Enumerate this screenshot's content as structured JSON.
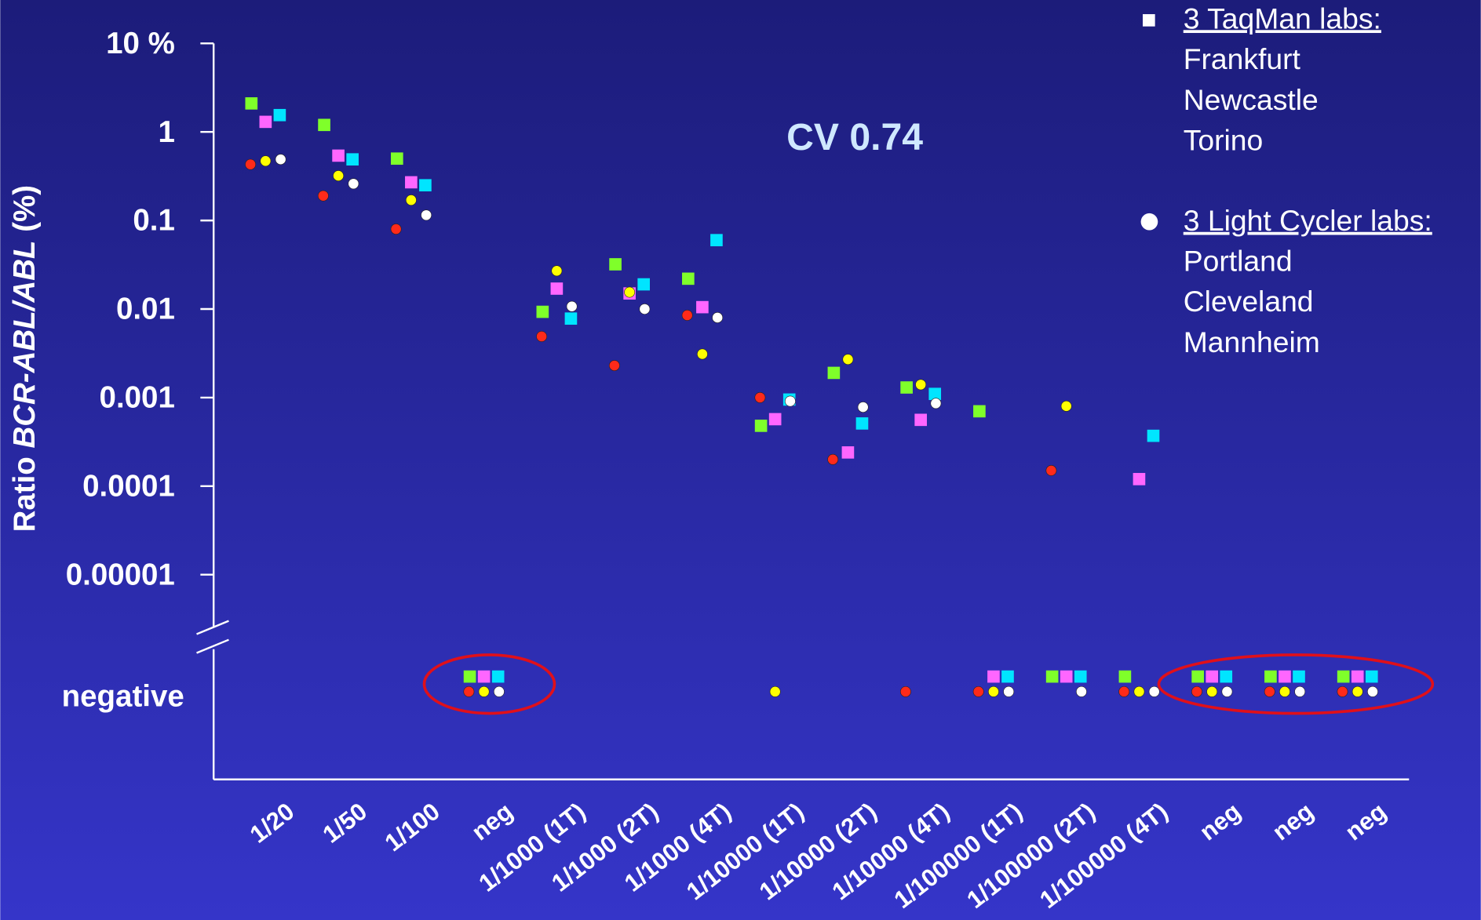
{
  "chart_data": {
    "type": "scatter",
    "annotation": "CV 0.74",
    "ylabel_parts": [
      "Ratio ",
      "BCR-ABL/ABL",
      " (%)"
    ],
    "log_y": true,
    "ylim": [
      1e-05,
      10
    ],
    "yticks": [
      {
        "value": 10,
        "label": "10 %"
      },
      1,
      0.1,
      0.01,
      0.001,
      0.0001,
      1e-05
    ],
    "negative_label": "negative",
    "categories": [
      "1/20",
      "1/50",
      "1/100",
      "neg",
      "1/1000 (1T)",
      "1/1000 (2T)",
      "1/1000 (4T)",
      "1/10000 (1T)",
      "1/10000 (2T)",
      "1/10000 (4T)",
      "1/100000 (1T)",
      "1/100000 (2T)",
      "1/100000 (4T)",
      "neg",
      "neg",
      "neg"
    ],
    "series": [
      {
        "marker": "square",
        "color": "#7fff2a",
        "values": [
          2.1,
          1.2,
          0.5,
          "negative",
          0.0093,
          0.032,
          0.022,
          0.00048,
          0.0019,
          0.0013,
          0.0007,
          "negative",
          "negative",
          "negative",
          "negative",
          "negative"
        ]
      },
      {
        "marker": "square",
        "color": "#ff66ff",
        "values": [
          1.3,
          0.54,
          0.27,
          "negative",
          0.017,
          0.015,
          0.0105,
          0.00057,
          0.00024,
          0.00056,
          "negative",
          "negative",
          0.00012,
          "negative",
          "negative",
          "negative"
        ]
      },
      {
        "marker": "square",
        "color": "#00e5ff",
        "values": [
          1.55,
          0.49,
          0.25,
          "negative",
          0.0078,
          0.019,
          0.06,
          0.00095,
          0.00051,
          0.0011,
          "negative",
          "negative",
          0.00037,
          "negative",
          "negative",
          "negative"
        ]
      },
      {
        "marker": "circle",
        "color": "#ff2a1a",
        "values": [
          0.43,
          0.19,
          0.08,
          "negative",
          0.0049,
          0.0023,
          0.0085,
          0.001,
          0.0002,
          "negative",
          "negative",
          0.00015,
          "negative",
          "negative",
          "negative",
          "negative"
        ]
      },
      {
        "marker": "circle",
        "color": "#ffff00",
        "values": [
          0.47,
          0.32,
          0.17,
          "negative",
          0.027,
          0.0155,
          0.0031,
          "negative",
          0.0027,
          0.0014,
          "negative",
          0.0008,
          "negative",
          "negative",
          "negative",
          "negative"
        ]
      },
      {
        "marker": "circle",
        "color": "#ffffff",
        "values": [
          0.49,
          0.26,
          0.115,
          "negative",
          0.0107,
          0.01,
          0.008,
          0.00091,
          0.00078,
          0.00086,
          "negative",
          "negative",
          "negative",
          "negative",
          "negative",
          "negative"
        ]
      }
    ],
    "legend": [
      {
        "title": "3 TaqMan labs:",
        "items": [
          "Frankfurt",
          "Newcastle",
          "Torino"
        ]
      },
      {
        "title": "3 Light Cycler labs:",
        "items": [
          "Portland",
          "Cleveland",
          "Mannheim"
        ]
      }
    ]
  }
}
